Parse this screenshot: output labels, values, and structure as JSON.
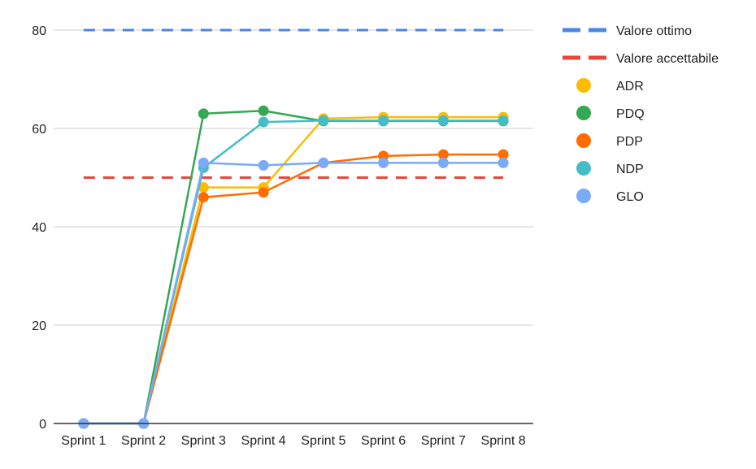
{
  "chart_data": {
    "type": "line",
    "title": "",
    "xlabel": "",
    "ylabel": "",
    "categories": [
      "Sprint 1",
      "Sprint 2",
      "Sprint 3",
      "Sprint 4",
      "Sprint 5",
      "Sprint 6",
      "Sprint 7",
      "Sprint 8"
    ],
    "ylim": [
      0,
      80
    ],
    "yticks": [
      0,
      20,
      40,
      60,
      80
    ],
    "grid": true,
    "legend_position": "right",
    "reference_lines": [
      {
        "name": "Valore ottimo",
        "value": 80,
        "color": "#4a86e8",
        "style": "dashed"
      },
      {
        "name": "Valore accettabile",
        "value": 50,
        "color": "#e8473a",
        "style": "dashed"
      }
    ],
    "series": [
      {
        "name": "ADR",
        "color": "#fbbc04",
        "values": [
          0,
          0,
          48,
          48,
          62,
          62.3,
          62.3,
          62.3
        ]
      },
      {
        "name": "PDQ",
        "color": "#34a853",
        "values": [
          0,
          0,
          63,
          63.6,
          61.5,
          61.5,
          61.5,
          61.5
        ]
      },
      {
        "name": "PDP",
        "color": "#ff6d01",
        "values": [
          0,
          0,
          46,
          47,
          53,
          54.4,
          54.7,
          54.7
        ]
      },
      {
        "name": "NDP",
        "color": "#46bdc6",
        "values": [
          0,
          0,
          52,
          61.3,
          61.6,
          61.6,
          61.6,
          61.6
        ]
      },
      {
        "name": "GLO",
        "color": "#7baaf7",
        "values": [
          0,
          0,
          53,
          52.5,
          53,
          53,
          53,
          53
        ]
      }
    ]
  }
}
